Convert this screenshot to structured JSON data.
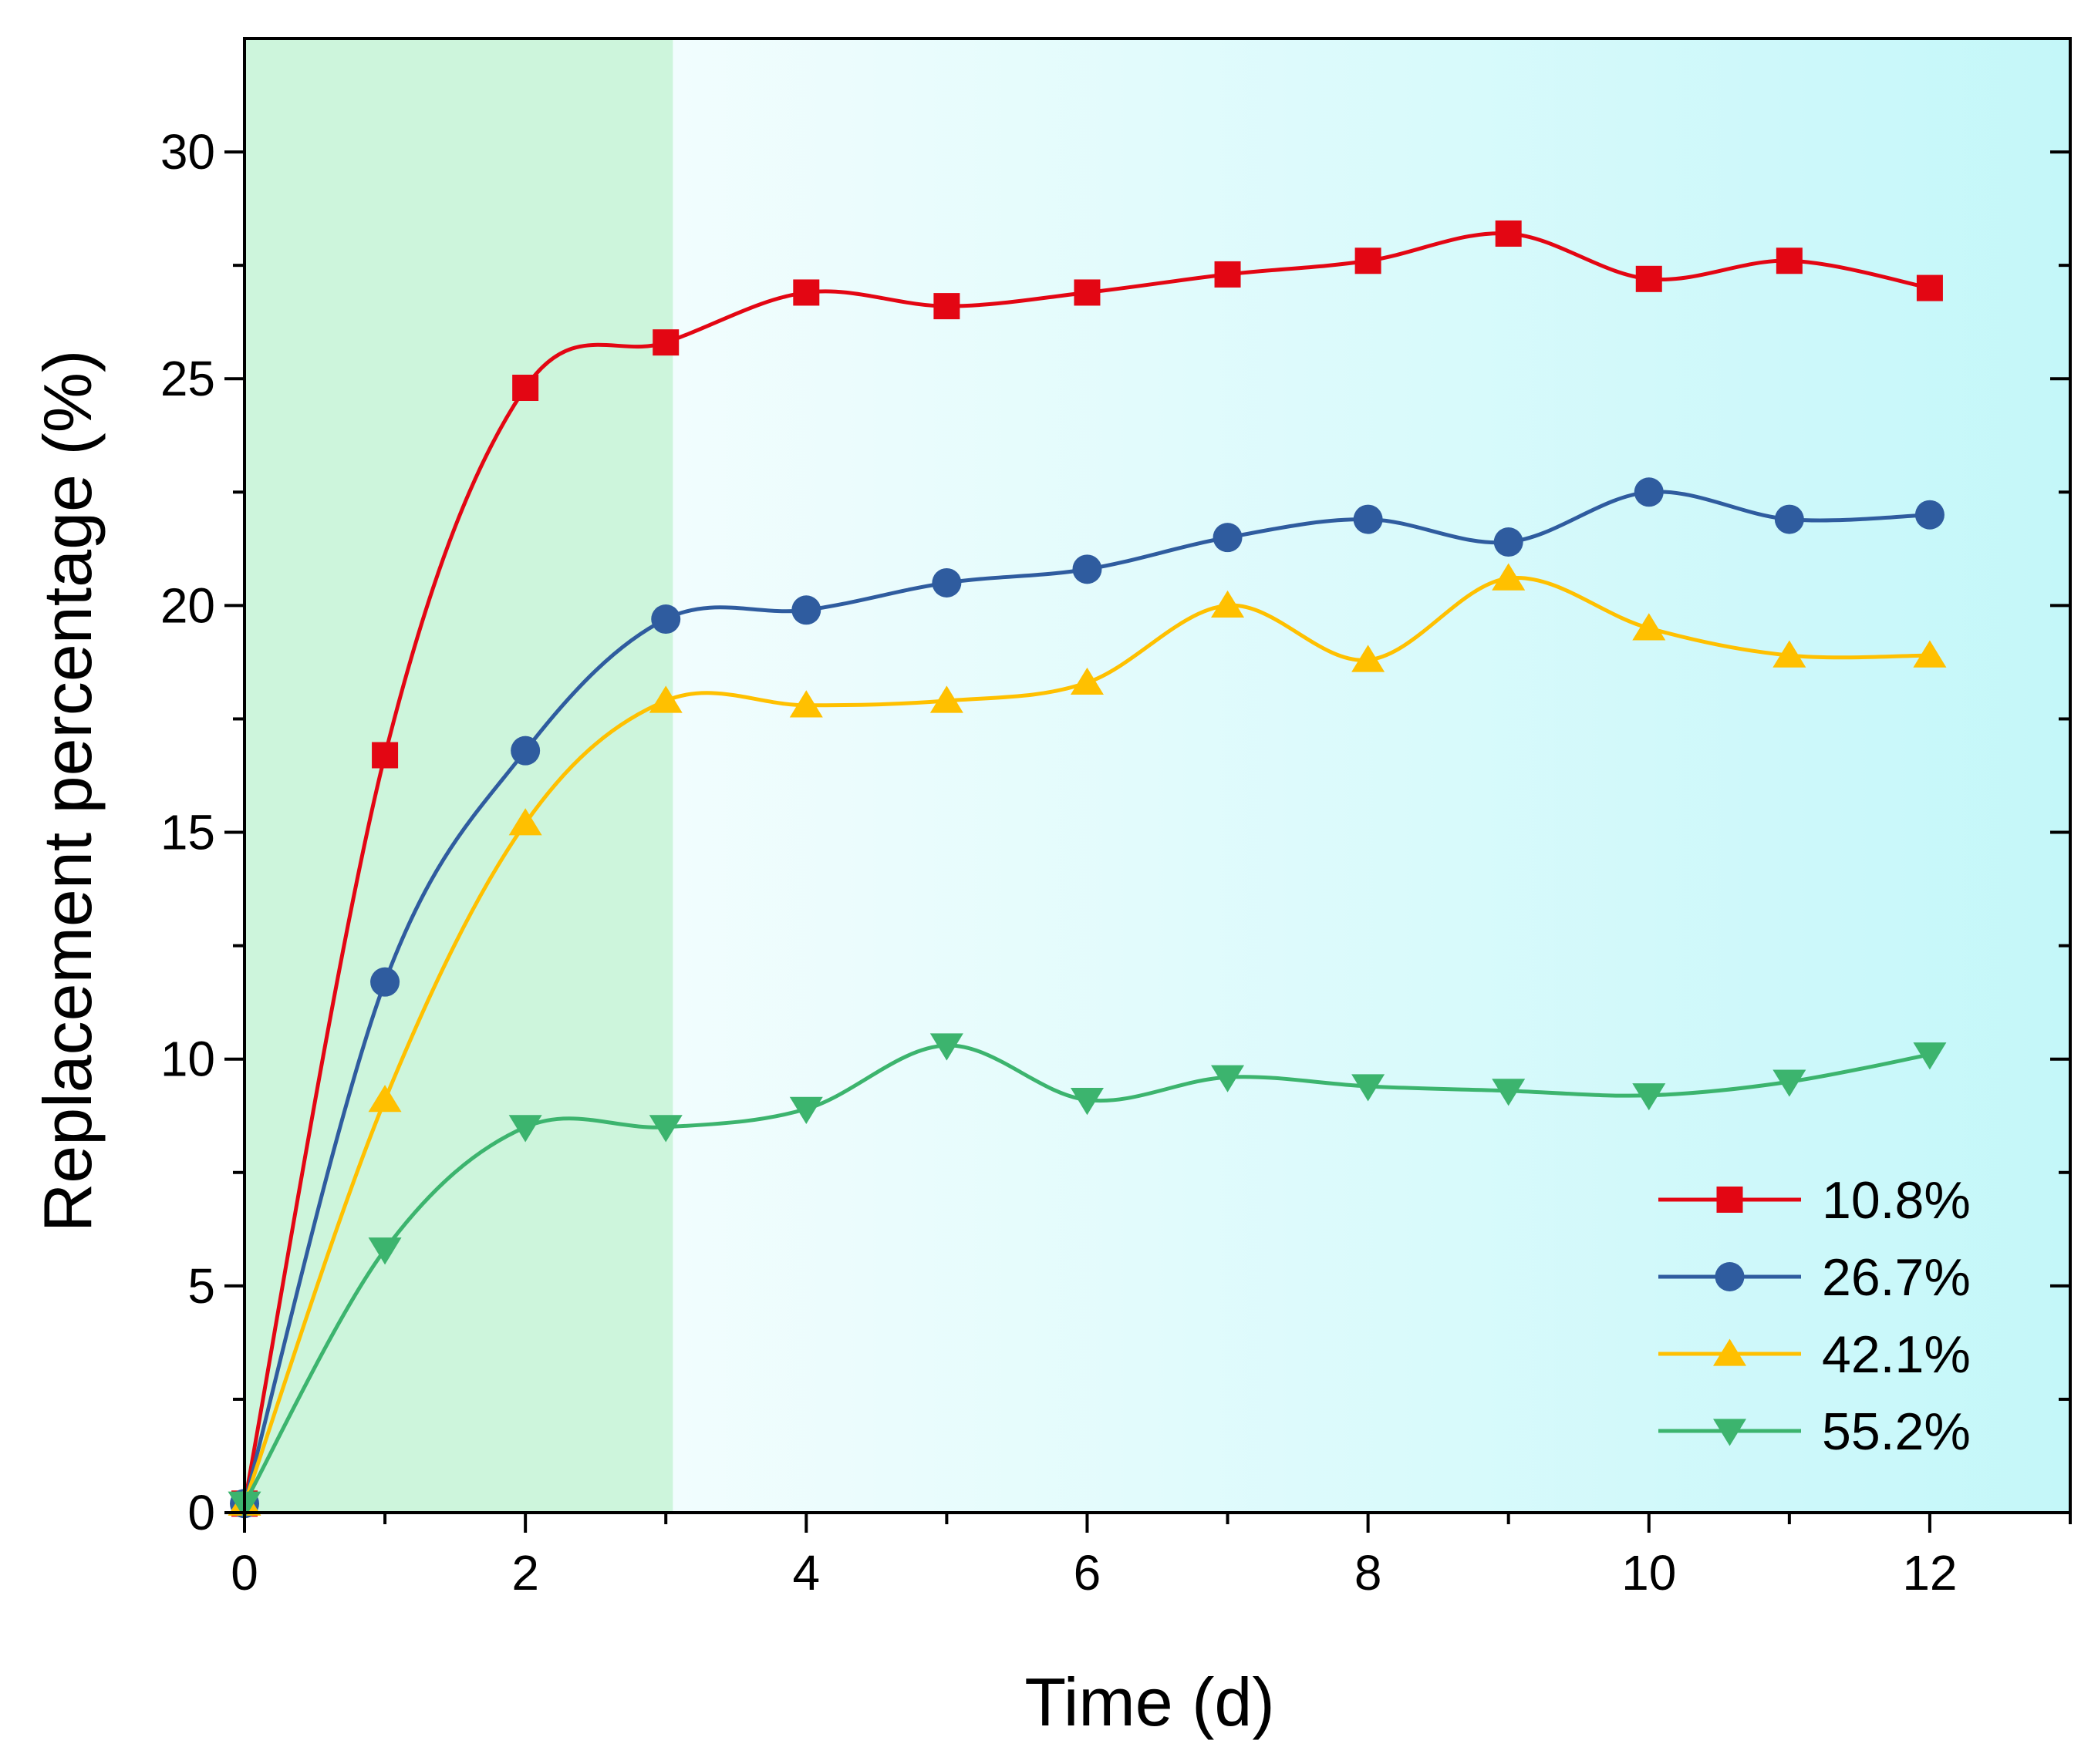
{
  "chart_data": {
    "type": "line",
    "title": "",
    "xlabel": "Time (d)",
    "ylabel": "Replacement percentage (%)",
    "xlim": [
      0,
      13
    ],
    "ylim": [
      0,
      32.5
    ],
    "xticks": [
      0,
      2,
      4,
      6,
      8,
      10,
      12
    ],
    "xtick_labels": [
      "0",
      "2",
      "4",
      "6",
      "8",
      "10",
      "12"
    ],
    "yticks": [
      0,
      5,
      10,
      15,
      20,
      25,
      30
    ],
    "ytick_labels": [
      "0",
      "5",
      "10",
      "15",
      "20",
      "25",
      "30"
    ],
    "grid": false,
    "legend_position": "bottom-right",
    "shaded_region": {
      "x_range": [
        0,
        3.05
      ],
      "color": "#cdf5dc"
    },
    "background_gradient": {
      "from": "#ffffff",
      "to": "#c4f7f9"
    },
    "series": [
      {
        "name": "10.8%",
        "color": "#e30613",
        "marker": "square",
        "x": [
          0,
          1,
          2,
          3,
          4,
          5,
          6,
          7,
          8,
          9,
          10,
          11,
          12
        ],
        "values": [
          0.2,
          16.7,
          24.8,
          25.8,
          26.9,
          26.6,
          26.9,
          27.3,
          27.6,
          28.2,
          27.2,
          27.6,
          27.0
        ]
      },
      {
        "name": "26.7%",
        "color": "#2f5c9f",
        "marker": "circle",
        "x": [
          0,
          1,
          2,
          3,
          4,
          5,
          6,
          7,
          8,
          9,
          10,
          11,
          12
        ],
        "values": [
          0.2,
          11.7,
          16.8,
          19.7,
          19.9,
          20.5,
          20.8,
          21.5,
          21.9,
          21.4,
          22.5,
          21.9,
          22.0
        ]
      },
      {
        "name": "42.1%",
        "color": "#ffc000",
        "marker": "triangle-up",
        "x": [
          0,
          1,
          2,
          3,
          4,
          5,
          6,
          7,
          8,
          9,
          10,
          11,
          12
        ],
        "values": [
          0.2,
          9.1,
          15.2,
          17.9,
          17.8,
          17.9,
          18.3,
          20.0,
          18.8,
          20.6,
          19.5,
          18.9,
          18.9
        ]
      },
      {
        "name": "55.2%",
        "color": "#3cb46e",
        "marker": "triangle-down",
        "x": [
          0,
          1,
          2,
          3,
          4,
          5,
          6,
          7,
          8,
          9,
          10,
          11,
          12
        ],
        "values": [
          0.2,
          5.8,
          8.5,
          8.5,
          8.9,
          10.3,
          9.1,
          9.6,
          9.4,
          9.3,
          9.2,
          9.5,
          10.1
        ]
      }
    ]
  }
}
